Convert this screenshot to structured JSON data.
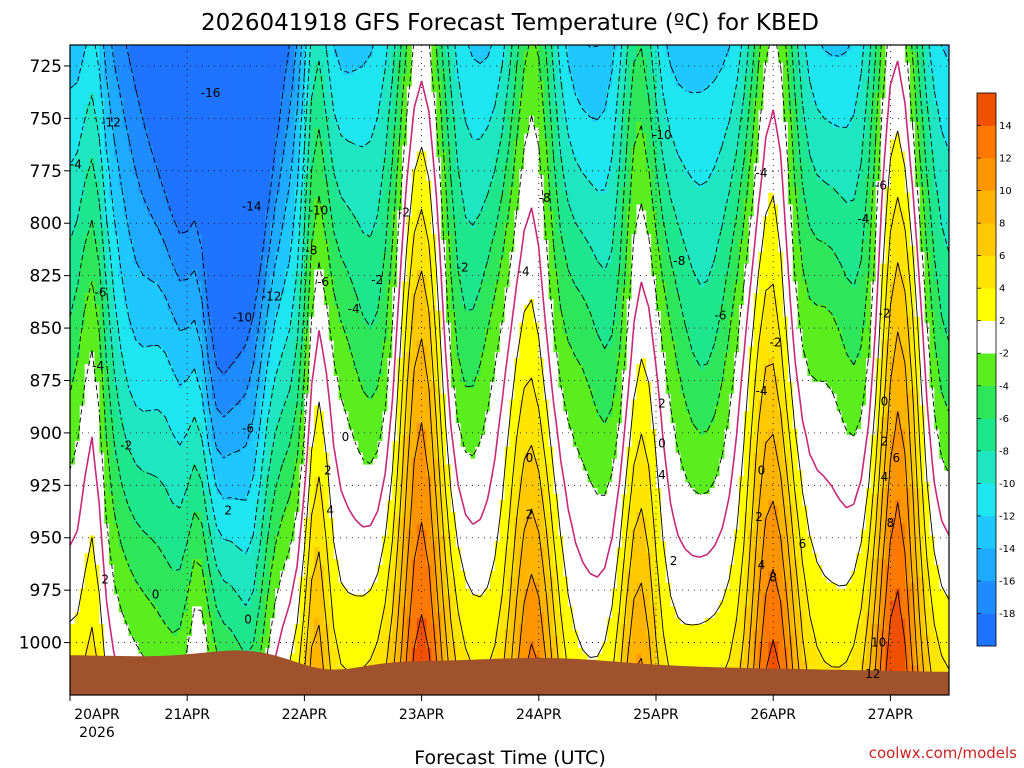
{
  "chart_data": {
    "type": "heatmap",
    "title": "2026041918 GFS Forecast Temperature (ºC) for KBED",
    "xlabel": "Forecast Time (UTC)",
    "ylabel": "",
    "credit": "coolwx.com/models",
    "y_axis": {
      "units": "hPa",
      "inverted": true,
      "range": [
        715,
        1025
      ],
      "ticks": [
        725,
        750,
        775,
        800,
        825,
        850,
        875,
        900,
        925,
        950,
        975,
        1000
      ]
    },
    "x_axis": {
      "range_days": [
        0,
        7.5
      ],
      "ticks": [
        {
          "day": 0,
          "label": "20APR",
          "sublabel": "2026"
        },
        {
          "day": 1,
          "label": "21APR"
        },
        {
          "day": 2,
          "label": "22APR"
        },
        {
          "day": 3,
          "label": "23APR"
        },
        {
          "day": 4,
          "label": "24APR"
        },
        {
          "day": 5,
          "label": "25APR"
        },
        {
          "day": 6,
          "label": "26APR"
        },
        {
          "day": 7,
          "label": "27APR"
        }
      ]
    },
    "colorbar": {
      "bins": [
        {
          "lo": -20,
          "hi": -18,
          "color": "#1e73ff"
        },
        {
          "lo": -18,
          "hi": -16,
          "color": "#1e8cff"
        },
        {
          "lo": -16,
          "hi": -14,
          "color": "#1eaaff"
        },
        {
          "lo": -14,
          "hi": -12,
          "color": "#1ec8ff"
        },
        {
          "lo": -12,
          "hi": -10,
          "color": "#1ee6f0"
        },
        {
          "lo": -10,
          "hi": -8,
          "color": "#1ee6c0"
        },
        {
          "lo": -8,
          "hi": -6,
          "color": "#1ee68c"
        },
        {
          "lo": -6,
          "hi": -4,
          "color": "#2ee65a"
        },
        {
          "lo": -4,
          "hi": -2,
          "color": "#5aee1e"
        },
        {
          "lo": -2,
          "hi": 2,
          "color": "#ffffff"
        },
        {
          "lo": 2,
          "hi": 4,
          "color": "#ffff00"
        },
        {
          "lo": 4,
          "hi": 6,
          "color": "#ffe600"
        },
        {
          "lo": 6,
          "hi": 8,
          "color": "#ffc800"
        },
        {
          "lo": 8,
          "hi": 10,
          "color": "#ffb400"
        },
        {
          "lo": 10,
          "hi": 12,
          "color": "#ff9600"
        },
        {
          "lo": 12,
          "hi": 14,
          "color": "#ff7800"
        },
        {
          "lo": 14,
          "hi": 16,
          "color": "#f05000"
        }
      ],
      "tick_labels": [
        "-18",
        "-16",
        "-14",
        "-12",
        "-10",
        "-8",
        "-6",
        "-4",
        "-2",
        "2",
        "4",
        "6",
        "8",
        "10",
        "12",
        "14"
      ]
    },
    "terrain_color": "#a0522d",
    "zero_contour_color": "#c8287a",
    "contour_labels": [
      {
        "text": "-16",
        "day": 1.2,
        "p": 738
      },
      {
        "text": "-12",
        "day": 0.35,
        "p": 752
      },
      {
        "text": "-4",
        "day": 0.05,
        "p": 772
      },
      {
        "text": "-14",
        "day": 1.55,
        "p": 792
      },
      {
        "text": "-10",
        "day": 2.12,
        "p": 794
      },
      {
        "text": "-8",
        "day": 2.06,
        "p": 813
      },
      {
        "text": "-6",
        "day": 2.16,
        "p": 828
      },
      {
        "text": "-2",
        "day": 2.62,
        "p": 827
      },
      {
        "text": "-4",
        "day": 2.42,
        "p": 841
      },
      {
        "text": "-12",
        "day": 1.72,
        "p": 835
      },
      {
        "text": "-10",
        "day": 1.47,
        "p": 845
      },
      {
        "text": "-6",
        "day": 0.26,
        "p": 833
      },
      {
        "text": "-4",
        "day": 0.24,
        "p": 868
      },
      {
        "text": "-6",
        "day": 1.52,
        "p": 898
      },
      {
        "text": "-2",
        "day": 0.48,
        "p": 906
      },
      {
        "text": "-2",
        "day": 2.85,
        "p": 795
      },
      {
        "text": "0",
        "day": 2.35,
        "p": 902
      },
      {
        "text": "2",
        "day": 2.2,
        "p": 918
      },
      {
        "text": "4",
        "day": 2.22,
        "p": 937
      },
      {
        "text": "2",
        "day": 1.35,
        "p": 937
      },
      {
        "text": "2",
        "day": 0.3,
        "p": 970
      },
      {
        "text": "0",
        "day": 0.73,
        "p": 977
      },
      {
        "text": "0",
        "day": 1.52,
        "p": 989
      },
      {
        "text": "-8",
        "day": 4.05,
        "p": 788
      },
      {
        "text": "-10",
        "day": 5.05,
        "p": 758
      },
      {
        "text": "-8",
        "day": 5.2,
        "p": 818
      },
      {
        "text": "-6",
        "day": 5.55,
        "p": 844
      },
      {
        "text": "-4",
        "day": 5.9,
        "p": 776
      },
      {
        "text": "-2",
        "day": 3.35,
        "p": 821
      },
      {
        "text": "-4",
        "day": 3.87,
        "p": 823
      },
      {
        "text": "0",
        "day": 3.92,
        "p": 912
      },
      {
        "text": "2",
        "day": 3.92,
        "p": 939
      },
      {
        "text": "2",
        "day": 5.05,
        "p": 886
      },
      {
        "text": "0",
        "day": 5.05,
        "p": 905
      },
      {
        "text": "4",
        "day": 5.05,
        "p": 920
      },
      {
        "text": "2",
        "day": 5.15,
        "p": 961
      },
      {
        "text": "-4",
        "day": 5.9,
        "p": 880
      },
      {
        "text": "-2",
        "day": 6.02,
        "p": 857
      },
      {
        "text": "0",
        "day": 5.9,
        "p": 918
      },
      {
        "text": "2",
        "day": 5.88,
        "p": 940
      },
      {
        "text": "4",
        "day": 5.9,
        "p": 963
      },
      {
        "text": "8",
        "day": 6.0,
        "p": 969
      },
      {
        "text": "6",
        "day": 6.25,
        "p": 953
      },
      {
        "text": "-6",
        "day": 6.92,
        "p": 782
      },
      {
        "text": "-4",
        "day": 6.77,
        "p": 798
      },
      {
        "text": "-2",
        "day": 6.95,
        "p": 843
      },
      {
        "text": "0",
        "day": 6.95,
        "p": 885
      },
      {
        "text": "2",
        "day": 6.95,
        "p": 904
      },
      {
        "text": "4",
        "day": 6.95,
        "p": 921
      },
      {
        "text": "6",
        "day": 7.05,
        "p": 912
      },
      {
        "text": "8",
        "day": 7.0,
        "p": 943
      },
      {
        "text": "10",
        "day": 6.9,
        "p": 1000
      },
      {
        "text": "12",
        "day": 6.85,
        "p": 1015
      }
    ]
  }
}
